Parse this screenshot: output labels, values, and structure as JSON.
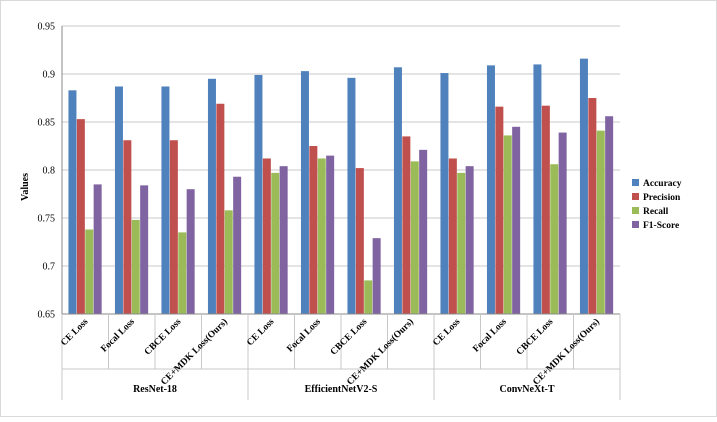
{
  "chart_data": {
    "type": "bar",
    "title": "",
    "xlabel": "",
    "ylabel": "Values",
    "ylim": [
      0.65,
      0.95
    ],
    "yticks": [
      "0.65",
      "0.7",
      "0.75",
      "0.8",
      "0.85",
      "0.9",
      "0.95"
    ],
    "grid": true,
    "legend_position": "right",
    "groups": [
      {
        "name": "ResNet-18",
        "categories": [
          "CE Loss",
          "Focal Loss",
          "CBCE Loss",
          "CE+MDK Loss(Ours)"
        ]
      },
      {
        "name": "EfficientNetV2-S",
        "categories": [
          "CE Loss",
          "Focal Loss",
          "CBCE Loss",
          "CE+MDK Loss(Ours)"
        ]
      },
      {
        "name": "ConvNeXt-T",
        "categories": [
          "CE Loss",
          "Focal Loss",
          "CBCE Loss",
          "CE+MDK Loss(Ours)"
        ]
      }
    ],
    "series": [
      {
        "name": "Accuracy",
        "color": "#4F81BD",
        "values": [
          0.883,
          0.887,
          0.887,
          0.895,
          0.899,
          0.903,
          0.896,
          0.907,
          0.901,
          0.909,
          0.91,
          0.916
        ]
      },
      {
        "name": "Precision",
        "color": "#C0504D",
        "values": [
          0.853,
          0.831,
          0.831,
          0.869,
          0.812,
          0.825,
          0.802,
          0.835,
          0.812,
          0.866,
          0.867,
          0.875
        ]
      },
      {
        "name": "Recall",
        "color": "#9BBB59",
        "values": [
          0.738,
          0.748,
          0.735,
          0.758,
          0.797,
          0.812,
          0.685,
          0.809,
          0.797,
          0.836,
          0.806,
          0.841
        ]
      },
      {
        "name": "F1-Score",
        "color": "#8064A2",
        "values": [
          0.785,
          0.784,
          0.78,
          0.793,
          0.804,
          0.815,
          0.729,
          0.821,
          0.804,
          0.845,
          0.839,
          0.856
        ]
      }
    ]
  }
}
